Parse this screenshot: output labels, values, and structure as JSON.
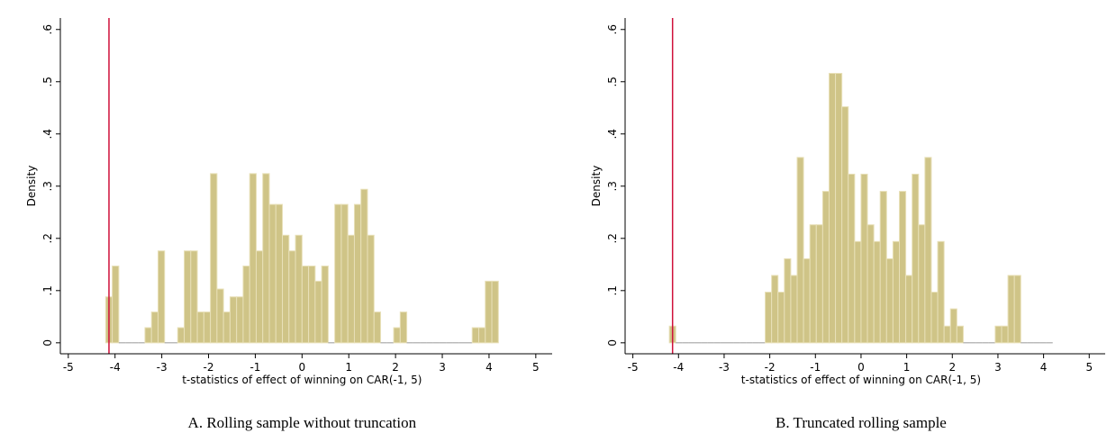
{
  "chart_data": [
    {
      "type": "histogram",
      "caption": "A. Rolling sample without truncation",
      "xlabel": "t-statistics of effect of winning on CAR(-1, 5)",
      "ylabel": "Density",
      "bins": [
        -4.2,
        -4.06,
        -3.92,
        -3.78,
        -3.64,
        -3.5,
        -3.36,
        -3.22,
        -3.08,
        -2.94,
        -2.8,
        -2.66,
        -2.52,
        -2.38,
        -2.24,
        -2.1,
        -1.96,
        -1.82,
        -1.68,
        -1.54,
        -1.4,
        -1.26,
        -1.12,
        -0.98,
        -0.84,
        -0.7,
        -0.56,
        -0.42,
        -0.28,
        -0.14,
        0,
        0.14,
        0.28,
        0.42,
        0.56,
        0.7,
        0.84,
        0.98,
        1.12,
        1.26,
        1.4,
        1.54,
        1.68,
        1.82,
        1.96,
        2.1,
        2.24,
        2.38,
        2.52,
        2.66,
        2.8,
        2.94,
        3.08,
        3.22,
        3.36,
        3.5,
        3.64,
        3.78,
        3.92,
        4.06,
        4.2
      ],
      "values": [
        0.088,
        0.147,
        0,
        0,
        0,
        0,
        0.029,
        0.059,
        0.176,
        0,
        0,
        0.029,
        0.176,
        0.176,
        0.059,
        0.059,
        0.324,
        0.103,
        0.059,
        0.088,
        0.088,
        0.147,
        0.324,
        0.176,
        0.324,
        0.265,
        0.265,
        0.206,
        0.176,
        0.206,
        0.147,
        0.147,
        0.118,
        0.147,
        0,
        0.265,
        0.265,
        0.206,
        0.265,
        0.294,
        0.206,
        0.059,
        0,
        0,
        0.029,
        0.059,
        0,
        0,
        0,
        0,
        0,
        0,
        0,
        0,
        0,
        0,
        0.029,
        0.029,
        0.118,
        0.118
      ],
      "color": "#cfc487",
      "vline": {
        "value": -4.13,
        "color": "#d0103a"
      },
      "xlim": [
        -5.17,
        5.35
      ],
      "ylim": [
        -0.021,
        0.622
      ],
      "xticks": [
        -5,
        -4,
        -3,
        -2,
        -1,
        0,
        1,
        2,
        3,
        4,
        5
      ],
      "yticks": [
        0,
        {
          "value": 0.1,
          "label": ".1"
        },
        {
          "value": 0.2,
          "label": ".2"
        },
        {
          "value": 0.3,
          "label": ".3"
        },
        {
          "value": 0.4,
          "label": ".4"
        },
        {
          "value": 0.5,
          "label": ".5"
        },
        {
          "value": 0.6,
          "label": ".6"
        }
      ]
    },
    {
      "type": "histogram",
      "caption": "B. Truncated rolling sample",
      "xlabel": "t-statistics of effect of winning on CAR(-1, 5)",
      "ylabel": "Density",
      "bins": [
        -4.2,
        -4.06,
        -3.92,
        -3.78,
        -3.64,
        -3.5,
        -3.36,
        -3.22,
        -3.08,
        -2.94,
        -2.8,
        -2.66,
        -2.52,
        -2.38,
        -2.24,
        -2.1,
        -1.96,
        -1.82,
        -1.68,
        -1.54,
        -1.4,
        -1.26,
        -1.12,
        -0.98,
        -0.84,
        -0.7,
        -0.56,
        -0.42,
        -0.28,
        -0.14,
        0,
        0.14,
        0.28,
        0.42,
        0.56,
        0.7,
        0.84,
        0.98,
        1.12,
        1.26,
        1.4,
        1.54,
        1.68,
        1.82,
        1.96,
        2.1,
        2.24,
        2.38,
        2.52,
        2.66,
        2.8,
        2.94,
        3.08,
        3.22,
        3.36,
        3.5,
        3.64,
        3.78,
        3.92,
        4.06,
        4.2
      ],
      "values": [
        0.032,
        0,
        0,
        0,
        0,
        0,
        0,
        0,
        0,
        0,
        0,
        0,
        0,
        0,
        0,
        0.097,
        0.129,
        0.097,
        0.161,
        0.129,
        0.355,
        0.161,
        0.226,
        0.226,
        0.29,
        0.516,
        0.516,
        0.452,
        0.323,
        0.194,
        0.323,
        0.226,
        0.194,
        0.29,
        0.161,
        0.194,
        0.29,
        0.129,
        0.323,
        0.226,
        0.355,
        0.097,
        0.194,
        0.032,
        0.065,
        0.032,
        0,
        0,
        0,
        0,
        0,
        0.032,
        0.032,
        0.129,
        0.129,
        0,
        0,
        0,
        0,
        0
      ],
      "color": "#cfc487",
      "vline": {
        "value": -4.13,
        "color": "#d0103a"
      },
      "xlim": [
        -5.17,
        5.35
      ],
      "ylim": [
        -0.021,
        0.622
      ],
      "xticks": [
        -5,
        -4,
        -3,
        -2,
        -1,
        0,
        1,
        2,
        3,
        4,
        5
      ],
      "yticks": [
        0,
        {
          "value": 0.1,
          "label": ".1"
        },
        {
          "value": 0.2,
          "label": ".2"
        },
        {
          "value": 0.3,
          "label": ".3"
        },
        {
          "value": 0.4,
          "label": ".4"
        },
        {
          "value": 0.5,
          "label": ".5"
        },
        {
          "value": 0.6,
          "label": ".6"
        }
      ]
    }
  ]
}
